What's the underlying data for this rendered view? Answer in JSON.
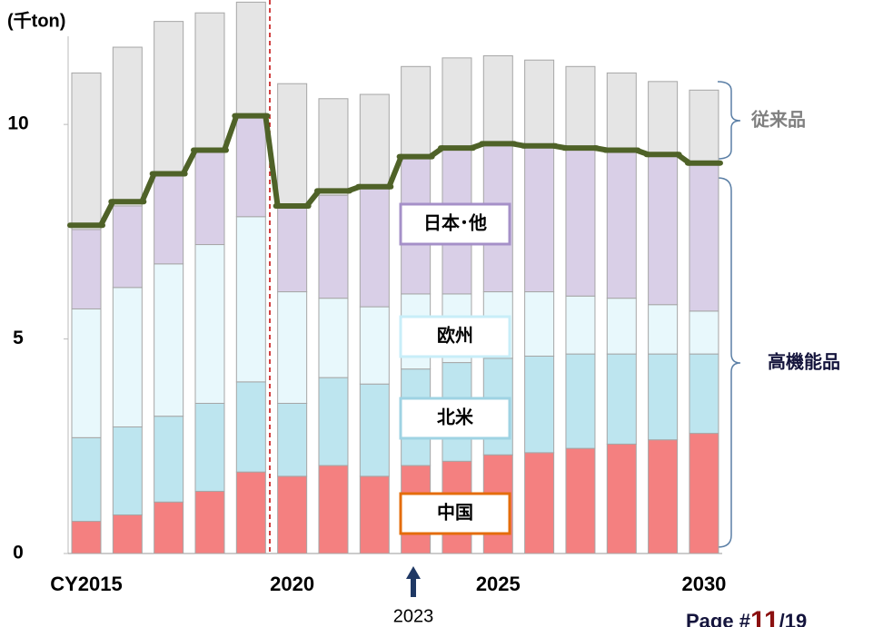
{
  "chart_data": {
    "type": "bar",
    "stacked": true,
    "unit_label": "(千ton)",
    "categories": [
      "CY2015",
      null,
      null,
      null,
      null,
      "2020",
      null,
      null,
      null,
      null,
      "2025",
      null,
      null,
      null,
      null,
      "2030"
    ],
    "series": [
      {
        "name": "中国",
        "color": "#f48080",
        "border": "#e46c0a",
        "values": [
          0.75,
          0.9,
          1.2,
          1.45,
          1.9,
          1.8,
          2.05,
          1.8,
          2.05,
          2.15,
          2.3,
          2.35,
          2.45,
          2.55,
          2.65,
          2.8
        ]
      },
      {
        "name": "北米",
        "color": "#bde5ef",
        "border": "#9fd3e3",
        "values": [
          1.95,
          2.05,
          2.0,
          2.05,
          2.1,
          1.7,
          2.05,
          2.15,
          2.25,
          2.3,
          2.25,
          2.25,
          2.2,
          2.1,
          2.0,
          1.85
        ]
      },
      {
        "name": "欧州",
        "color": "#e8f8fc",
        "border": "#c8eef8",
        "values": [
          3.0,
          3.25,
          3.55,
          3.7,
          3.85,
          2.6,
          1.85,
          1.8,
          1.75,
          1.6,
          1.55,
          1.5,
          1.35,
          1.3,
          1.15,
          1.0
        ]
      },
      {
        "name": "日本･他",
        "color": "#d9cfe7",
        "border": "#a590c8",
        "values": [
          1.85,
          1.9,
          2.05,
          2.2,
          2.35,
          1.95,
          2.4,
          2.75,
          3.15,
          3.35,
          3.45,
          3.4,
          3.45,
          3.45,
          3.5,
          3.45
        ]
      },
      {
        "color": "#e5e5e5",
        "values": [
          3.65,
          3.7,
          3.6,
          3.2,
          2.65,
          2.9,
          2.25,
          2.2,
          2.15,
          2.15,
          2.05,
          2.0,
          1.9,
          1.8,
          1.7,
          1.7
        ]
      }
    ],
    "line": {
      "color": "#4f6228",
      "values": [
        7.65,
        8.2,
        8.85,
        9.4,
        10.2,
        8.1,
        8.45,
        8.55,
        9.25,
        9.45,
        9.55,
        9.5,
        9.45,
        9.4,
        9.3,
        9.1
      ]
    },
    "ylim": [
      0,
      12.9
    ],
    "yticks": [
      0,
      5,
      10
    ],
    "brace_labels": [
      {
        "text": "従来品",
        "color": "#808080"
      },
      {
        "text": "高機能品",
        "color": "#14143c"
      }
    ],
    "annotation": "2023",
    "footer": [
      "Page #",
      "11",
      "/19"
    ]
  }
}
